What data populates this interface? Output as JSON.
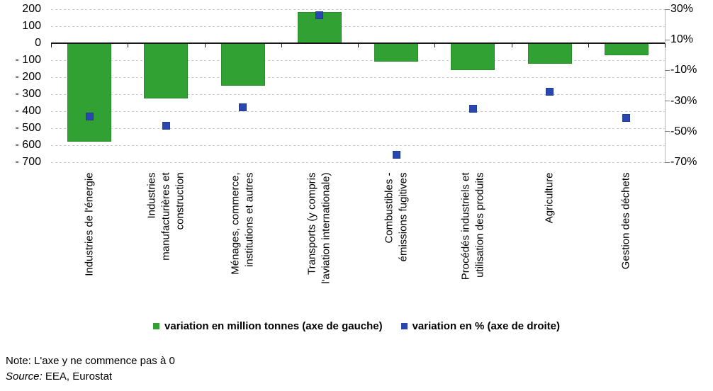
{
  "chart_data": {
    "type": "combo-bar-scatter",
    "title": "",
    "categories": [
      {
        "label": "Industries de l'énergie",
        "lines": [
          "Industries de l'énergie"
        ]
      },
      {
        "label": "Industries manufacturières et construction",
        "lines": [
          "Industries",
          "manufacturières et",
          "construction"
        ]
      },
      {
        "label": "Ménages, commerce, institutions et autres",
        "lines": [
          "Ménages, commerce,",
          "institutions et autres"
        ]
      },
      {
        "label": "Transports (y compris l'aviation internationale)",
        "lines": [
          "Transports (y compris",
          "l'aviation internationale)"
        ]
      },
      {
        "label": "Combustibles - émissions fugitives",
        "lines": [
          "Combustibles -",
          "émissions fugitives"
        ]
      },
      {
        "label": "Procédés industriels et utilisation des produits",
        "lines": [
          "Procédés industriels et",
          "utilisation des produits"
        ]
      },
      {
        "label": "Agriculture",
        "lines": [
          "Agriculture"
        ]
      },
      {
        "label": "Gestion des déchets",
        "lines": [
          "Gestion des déchets"
        ]
      }
    ],
    "series": [
      {
        "name": "variation en million tonnes (axe de gauche)",
        "chart_type": "bar",
        "axis": "left",
        "color": "#32a134",
        "border_color": "#2a8c2d",
        "values": [
          -580,
          -325,
          -250,
          185,
          -110,
          -160,
          -120,
          -70
        ]
      },
      {
        "name": "variation en % (axe de droite)",
        "chart_type": "scatter",
        "axis": "right",
        "color": "#2b46b0",
        "border_color": "#1d3f8f",
        "values": [
          -40,
          -46,
          -34,
          26,
          -65,
          -35,
          -24,
          -41
        ]
      }
    ],
    "left_axis": {
      "min": -700,
      "max": 200,
      "tick_values": [
        200,
        100,
        0,
        -100,
        -200,
        -300,
        -400,
        -500,
        -600,
        -700
      ],
      "tick_labels": [
        "200",
        "100",
        "0",
        "- 100",
        "- 200",
        "- 300",
        "- 400",
        "- 500",
        "- 600",
        "- 700"
      ]
    },
    "right_axis": {
      "min": -70,
      "max": 30,
      "tick_values": [
        30,
        10,
        -10,
        -30,
        -50,
        -70
      ],
      "tick_labels": [
        "30%",
        "10%",
        "-10%",
        "-30%",
        "-50%",
        "-70%"
      ]
    },
    "grid": true,
    "legend_position": "bottom"
  },
  "footer": {
    "note": "Note: L'axe y ne commence pas à 0",
    "source_prefix": "Source:",
    "source_text": " EEA, Eurostat"
  }
}
